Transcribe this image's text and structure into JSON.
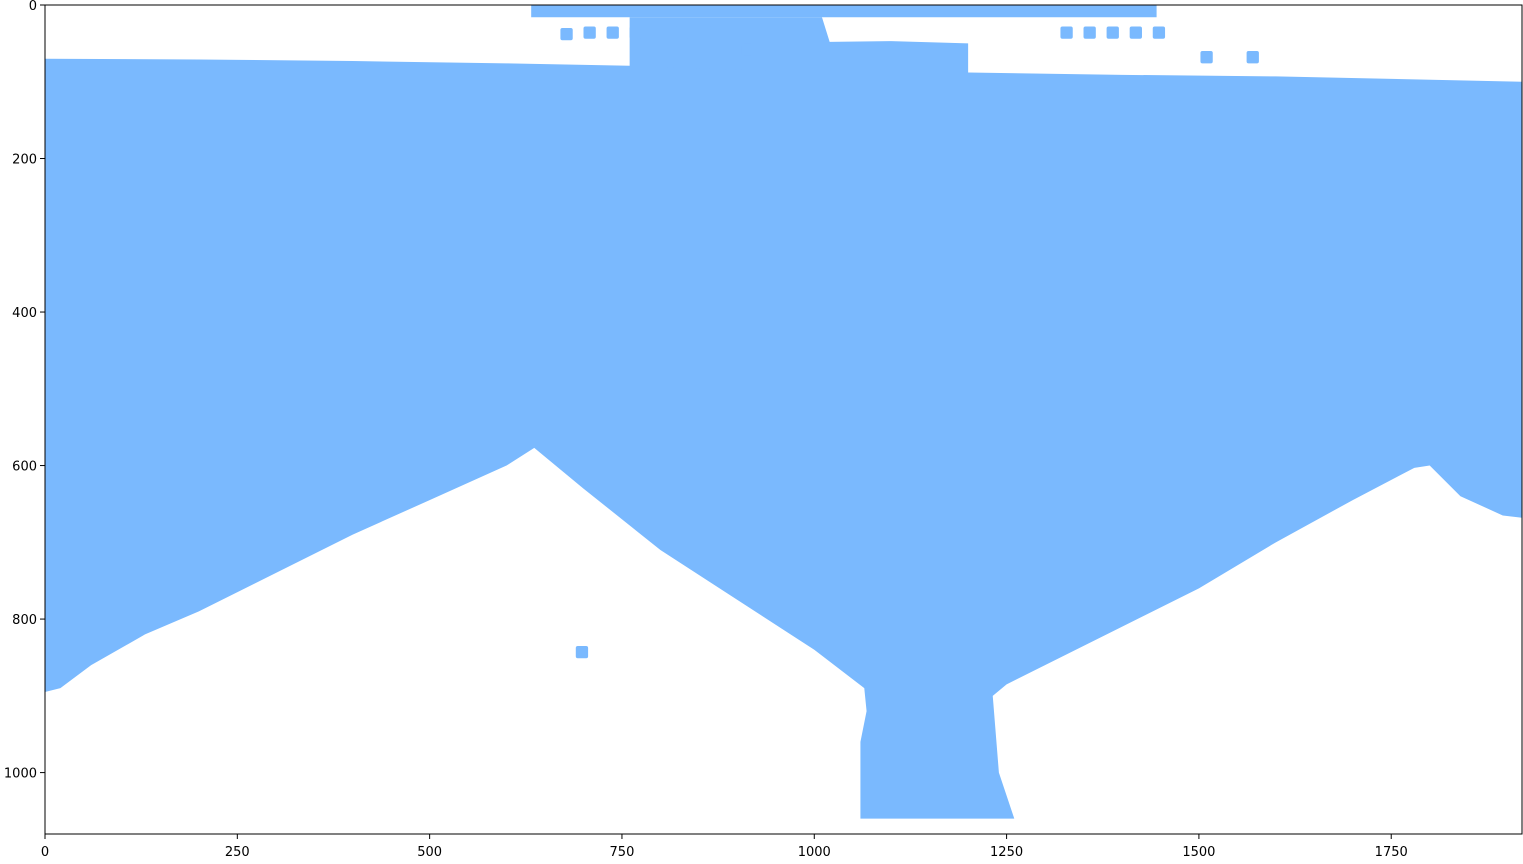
{
  "chart_data": {
    "type": "heatmap",
    "title": "",
    "xlabel": "",
    "ylabel": "",
    "xlim": [
      0,
      1920
    ],
    "ylim": [
      1080,
      0
    ],
    "x_ticks": [
      0,
      250,
      500,
      750,
      1000,
      1250,
      1500,
      1750
    ],
    "y_ticks": [
      0,
      200,
      400,
      600,
      800,
      1000
    ],
    "mask_color": "#7ab9fe",
    "background_color": "#ffffff",
    "grid": false,
    "legend": false,
    "regions": [
      {
        "name": "main-region",
        "polygon": [
          [
            0,
            70
          ],
          [
            200,
            71
          ],
          [
            400,
            73
          ],
          [
            600,
            76
          ],
          [
            800,
            80
          ],
          [
            1000,
            84
          ],
          [
            1200,
            88
          ],
          [
            1400,
            91
          ],
          [
            1600,
            93
          ],
          [
            1920,
            100
          ],
          [
            1920,
            668
          ],
          [
            1895,
            665
          ],
          [
            1840,
            640
          ],
          [
            1800,
            600
          ],
          [
            1780,
            603
          ],
          [
            1700,
            645
          ],
          [
            1600,
            700
          ],
          [
            1500,
            760
          ],
          [
            1400,
            810
          ],
          [
            1300,
            860
          ],
          [
            1250,
            885
          ],
          [
            1232,
            900
          ],
          [
            1240,
            1000
          ],
          [
            1260,
            1060
          ],
          [
            1060,
            1060
          ],
          [
            1060,
            960
          ],
          [
            1068,
            920
          ],
          [
            1065,
            890
          ],
          [
            1000,
            840
          ],
          [
            900,
            775
          ],
          [
            800,
            710
          ],
          [
            700,
            630
          ],
          [
            636,
            577
          ],
          [
            600,
            600
          ],
          [
            500,
            645
          ],
          [
            400,
            690
          ],
          [
            300,
            740
          ],
          [
            200,
            790
          ],
          [
            130,
            820
          ],
          [
            60,
            860
          ],
          [
            20,
            890
          ],
          [
            0,
            895
          ]
        ]
      },
      {
        "name": "top-band",
        "polygon": [
          [
            632,
            0
          ],
          [
            1445,
            0
          ],
          [
            1445,
            16
          ],
          [
            632,
            16
          ]
        ]
      },
      {
        "name": "upper-right-band",
        "polygon": [
          [
            760,
            16
          ],
          [
            1010,
            16
          ],
          [
            1020,
            48
          ],
          [
            1100,
            47
          ],
          [
            1200,
            50
          ],
          [
            1200,
            90
          ],
          [
            1100,
            88
          ],
          [
            1000,
            86
          ],
          [
            900,
            84
          ],
          [
            800,
            81
          ],
          [
            760,
            80
          ]
        ]
      },
      {
        "name": "top-squares",
        "squares": [
          [
            670,
            30
          ],
          [
            700,
            28
          ],
          [
            730,
            28
          ],
          [
            760,
            28
          ],
          [
            790,
            28
          ],
          [
            820,
            28
          ],
          [
            850,
            28
          ],
          [
            880,
            28
          ],
          [
            905,
            50
          ],
          [
            1320,
            28
          ],
          [
            1350,
            28
          ],
          [
            1380,
            28
          ],
          [
            1410,
            28
          ],
          [
            1440,
            28
          ],
          [
            1502,
            60
          ],
          [
            1562,
            60
          ],
          [
            690,
            835
          ]
        ],
        "size": 16
      }
    ]
  }
}
